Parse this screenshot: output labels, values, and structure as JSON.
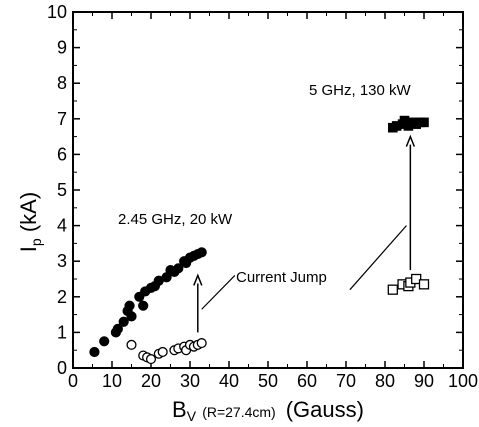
{
  "chart_data": {
    "type": "scatter",
    "xlim": [
      0,
      100
    ],
    "ylim": [
      0,
      10
    ],
    "xticks": [
      "0",
      "10",
      "20",
      "30",
      "40",
      "50",
      "60",
      "70",
      "80",
      "90",
      "100"
    ],
    "yticks": [
      "0",
      "1",
      "2",
      "3",
      "4",
      "5",
      "6",
      "7",
      "8",
      "9",
      "10"
    ],
    "xlabel": {
      "main": "B",
      "sub": "V",
      "detail": "(R=27.4cm)",
      "unit": "(Gauss)"
    },
    "ylabel": {
      "main": "I",
      "sub": "p",
      "unit": "(kA)"
    },
    "grid": false,
    "series": [
      {
        "marker": "filled-circle",
        "color": "#000000",
        "points": [
          [
            5.5,
            0.45
          ],
          [
            8,
            0.75
          ],
          [
            11,
            1.0
          ],
          [
            11.5,
            1.1
          ],
          [
            13,
            1.3
          ],
          [
            14,
            1.6
          ],
          [
            14.5,
            1.75
          ],
          [
            15,
            1.45
          ],
          [
            17,
            2.0
          ],
          [
            18,
            1.75
          ],
          [
            18.5,
            2.15
          ],
          [
            20,
            2.25
          ],
          [
            21,
            2.3
          ],
          [
            22,
            2.45
          ],
          [
            24,
            2.55
          ],
          [
            25,
            2.75
          ],
          [
            26,
            2.7
          ],
          [
            27,
            2.8
          ],
          [
            28.5,
            3.0
          ],
          [
            29,
            2.95
          ],
          [
            30,
            3.1
          ],
          [
            31,
            3.15
          ],
          [
            32,
            3.2
          ],
          [
            33,
            3.25
          ]
        ]
      },
      {
        "marker": "open-circle",
        "color": "#000000",
        "points": [
          [
            15,
            0.65
          ],
          [
            18,
            0.35
          ],
          [
            19,
            0.3
          ],
          [
            20,
            0.25
          ],
          [
            22,
            0.4
          ],
          [
            23,
            0.45
          ],
          [
            26,
            0.5
          ],
          [
            27,
            0.55
          ],
          [
            28.5,
            0.6
          ],
          [
            29,
            0.5
          ],
          [
            30,
            0.65
          ],
          [
            31,
            0.6
          ],
          [
            32,
            0.65
          ],
          [
            33,
            0.7
          ]
        ]
      },
      {
        "marker": "filled-square",
        "color": "#000000",
        "points": [
          [
            82,
            6.75
          ],
          [
            83,
            6.8
          ],
          [
            84.5,
            6.85
          ],
          [
            85,
            6.95
          ],
          [
            86,
            6.8
          ],
          [
            87,
            6.9
          ],
          [
            88,
            6.85
          ],
          [
            89,
            6.9
          ],
          [
            90,
            6.9
          ]
        ]
      },
      {
        "marker": "open-square",
        "color": "#000000",
        "points": [
          [
            82,
            2.2
          ],
          [
            84.5,
            2.35
          ],
          [
            86,
            2.3
          ],
          [
            86.5,
            2.4
          ],
          [
            88,
            2.5
          ],
          [
            90,
            2.35
          ]
        ]
      }
    ],
    "annotations": [
      {
        "text": "2.45 GHz, 20 kW"
      },
      {
        "text": "5 GHz, 130 kW"
      },
      {
        "text": "Current Jump"
      }
    ]
  }
}
